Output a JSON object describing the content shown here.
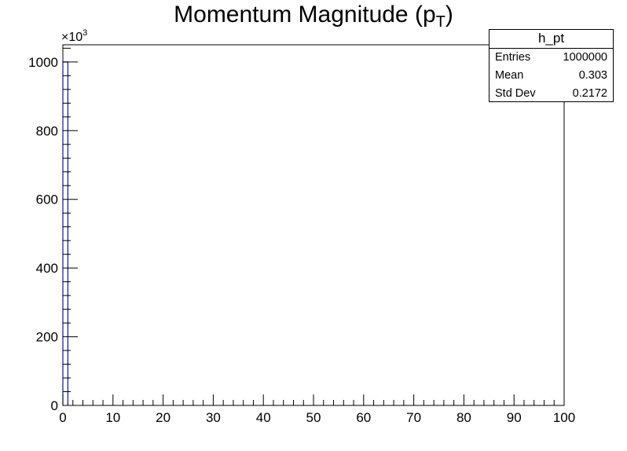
{
  "chart_data": {
    "type": "histogram",
    "title_main": "Momentum Magnitude (p",
    "title_sub": "T",
    "title_tail": ")",
    "y_multiplier_base": "×10",
    "y_multiplier_exp": "3",
    "xlim": [
      0,
      100
    ],
    "ylim": [
      0,
      1050
    ],
    "x_tick_labels": [
      "0",
      "10",
      "20",
      "30",
      "40",
      "50",
      "60",
      "70",
      "80",
      "90",
      "100"
    ],
    "y_tick_labels": [
      "0",
      "200",
      "400",
      "600",
      "800",
      "1000"
    ],
    "bins": [
      {
        "x_low": 0,
        "x_high": 1,
        "value": 1000
      }
    ],
    "line_color": "#0b1a8a",
    "grid": false,
    "legend": "stats box top-right"
  },
  "stats": {
    "name": "h_pt",
    "rows": [
      {
        "label": "Entries",
        "value": "1000000"
      },
      {
        "label": "Mean",
        "value": "0.303"
      },
      {
        "label": "Std Dev",
        "value": "0.2172"
      }
    ]
  }
}
